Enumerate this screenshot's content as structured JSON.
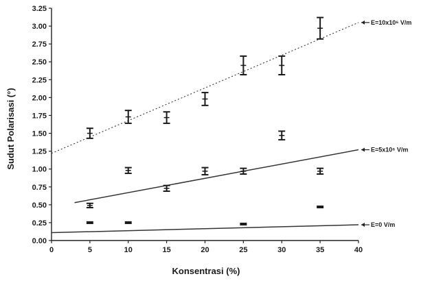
{
  "chart_data": {
    "type": "scatter",
    "xlabel": "Konsentrasi (%)",
    "ylabel": "Sudut Polarisasi (°)",
    "xlim": [
      0,
      40
    ],
    "ylim": [
      0,
      3.25
    ],
    "xticks": [
      "0",
      "5",
      "10",
      "15",
      "20",
      "25",
      "30",
      "35",
      "40"
    ],
    "yticks": [
      "0.00",
      "0.25",
      "0.50",
      "0.75",
      "1.00",
      "1.25",
      "1.50",
      "1.75",
      "2.00",
      "2.25",
      "2.50",
      "2.75",
      "3.00",
      "3.25"
    ],
    "grid": false,
    "series": [
      {
        "name": "E=10x10⁶ V/m",
        "x": [
          5,
          10,
          15,
          20,
          25,
          30,
          35
        ],
        "y": [
          1.5,
          1.73,
          1.72,
          1.98,
          2.45,
          2.45,
          2.97
        ],
        "err": [
          0.07,
          0.09,
          0.08,
          0.09,
          0.13,
          0.13,
          0.15
        ],
        "fit": [
          1.22,
          3.05
        ],
        "fit_x": [
          0,
          40
        ]
      },
      {
        "name": "E=5x10⁶ V/m",
        "x": [
          5,
          10,
          20,
          25,
          30,
          35
        ],
        "y": [
          0.49,
          0.98,
          0.97,
          0.97,
          1.47,
          0.97
        ],
        "err": [
          0.03,
          0.04,
          0.05,
          0.04,
          0.06,
          0.04
        ],
        "fit": [
          0.53,
          1.27
        ],
        "fit_x": [
          3,
          40
        ]
      },
      {
        "name": "",
        "x": [
          15
        ],
        "y": [
          0.73
        ],
        "err": [
          0.04
        ]
      },
      {
        "name": "E=0 V/m",
        "x": [
          5,
          10,
          25,
          35
        ],
        "y": [
          0.25,
          0.25,
          0.23,
          0.47
        ],
        "err": [
          0.01,
          0.01,
          0.01,
          0.01
        ],
        "fit": [
          0.11,
          0.22
        ],
        "fit_x": [
          0,
          40
        ]
      }
    ]
  }
}
